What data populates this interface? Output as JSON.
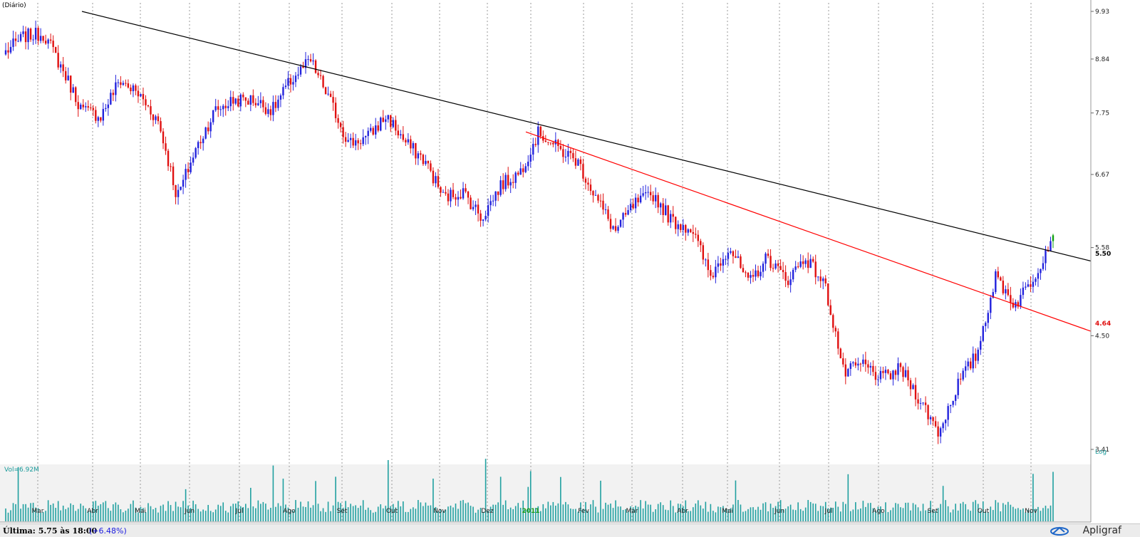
{
  "header": {
    "period_label": "(Diário)"
  },
  "footer": {
    "last_label": "Última: 5.75 às 18:00",
    "change": "(+6.48%)"
  },
  "brand": {
    "name": "Apligraf"
  },
  "volume": {
    "label": "Vol=6.92M"
  },
  "colors": {
    "up": "#2222dd",
    "down": "#e01010",
    "volume": "#20a0a0",
    "trend_black": "#000000",
    "trend_red": "#ff0000",
    "last_candle": "#10a010"
  },
  "chart_data": {
    "type": "candlestick",
    "scale": "log",
    "scale_label": "Log",
    "ylim": [
      3.41,
      9.93
    ],
    "y_ticks": [
      "9.93",
      "8.84",
      "7.75",
      "6.67",
      "5.58",
      "4.50",
      "3.41"
    ],
    "price_markers": [
      {
        "label": "5.50",
        "value": 5.5,
        "color": "#000000"
      },
      {
        "label": "4.64",
        "value": 4.64,
        "color": "#e01010"
      }
    ],
    "x_ticks": [
      "Mar",
      "Abr",
      "Mai",
      "Jun",
      "Jul",
      "Ago",
      "Set",
      "Out",
      "Nov",
      "Dez",
      "2011",
      "Fev",
      "Mar",
      "Abr",
      "Mai",
      "Jun",
      "Jul",
      "Ago",
      "Set",
      "Out",
      "Nov"
    ],
    "close_path": [
      9.0,
      9.35,
      9.4,
      8.6,
      7.8,
      7.7,
      8.4,
      8.1,
      7.6,
      6.3,
      7.1,
      7.8,
      8.0,
      8.0,
      7.8,
      8.4,
      8.8,
      8.0,
      7.2,
      7.3,
      7.7,
      7.2,
      6.9,
      6.3,
      6.4,
      6.0,
      6.5,
      6.7,
      7.4,
      7.1,
      6.9,
      6.3,
      5.8,
      6.2,
      6.35,
      5.95,
      5.85,
      5.2,
      5.6,
      5.1,
      5.45,
      5.15,
      5.45,
      5.1,
      4.1,
      4.2,
      4.05,
      4.15,
      3.85,
      3.55,
      4.0,
      4.3,
      5.2,
      4.85,
      5.2,
      5.75
    ],
    "trendlines": [
      {
        "name": "black",
        "from": 9.93,
        "to": 5.4
      },
      {
        "name": "red",
        "from": 7.4,
        "to": 4.55
      }
    ]
  }
}
